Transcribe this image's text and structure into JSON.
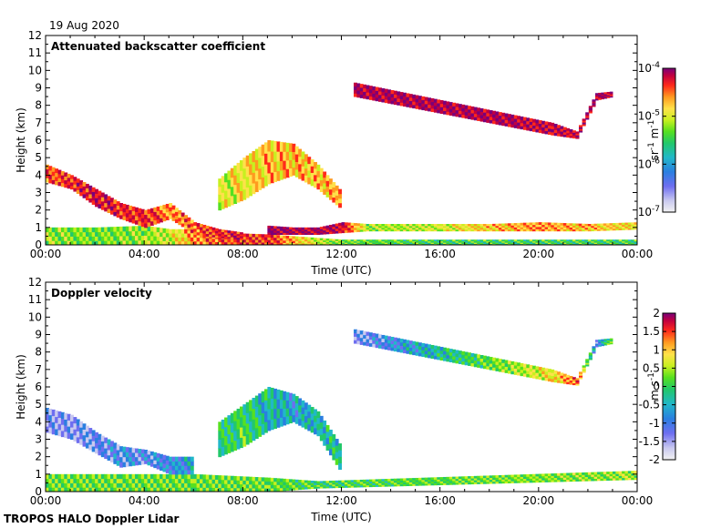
{
  "date": "19 Aug 2020",
  "footer": "TROPOS HALO Doppler Lidar",
  "chart_data": [
    {
      "type": "heatmap",
      "title": "Attenuated backscatter coefficient",
      "xlabel": "Time (UTC)",
      "ylabel": "Height (km)",
      "x_ticks": [
        "00:00",
        "04:00",
        "08:00",
        "12:00",
        "16:00",
        "20:00",
        "00:00"
      ],
      "xlim_hours": [
        0,
        24
      ],
      "ylim": [
        0,
        12
      ],
      "y_ticks": [
        0,
        1,
        2,
        3,
        4,
        5,
        6,
        7,
        8,
        9,
        10,
        11,
        12
      ],
      "colorbar": {
        "label_base": "sr",
        "label_exp1": "-1",
        "label_mid": " m",
        "label_exp2": "-1",
        "scale": "log",
        "range": [
          1e-07,
          0.0001
        ],
        "ticks": [
          {
            "base": "10",
            "exp": "-4",
            "pos": 1.0
          },
          {
            "base": "10",
            "exp": "-5",
            "pos": 0.6667
          },
          {
            "base": "10",
            "exp": "-6",
            "pos": 0.3333
          },
          {
            "base": "10",
            "exp": "-7",
            "pos": 0.0
          }
        ]
      },
      "features": [
        {
          "name": "boundary-layer",
          "points": [
            [
              0,
              0.0,
              1.0,
              0.55
            ],
            [
              2,
              0.0,
              1.0,
              0.5
            ],
            [
              4,
              0.0,
              1.1,
              0.55
            ],
            [
              5,
              0.0,
              0.9,
              0.6
            ],
            [
              6,
              0.0,
              0.9,
              0.75
            ],
            [
              7,
              0.0,
              0.7,
              0.8
            ],
            [
              9,
              0.0,
              0.6,
              0.85
            ],
            [
              10,
              0.0,
              0.5,
              0.7
            ],
            [
              11,
              0.0,
              0.4,
              0.6
            ],
            [
              12,
              0.0,
              0.3,
              0.5
            ],
            [
              16,
              0.0,
              0.3,
              0.45
            ],
            [
              20,
              0.0,
              0.3,
              0.45
            ],
            [
              24,
              0.0,
              0.3,
              0.45
            ]
          ]
        },
        {
          "name": "residual-layer",
          "points": [
            [
              0,
              3.6,
              4.6,
              0.8
            ],
            [
              1,
              3.2,
              4.0,
              0.85
            ],
            [
              2,
              2.2,
              3.2,
              0.9
            ],
            [
              3,
              1.5,
              2.4,
              0.85
            ],
            [
              4,
              1.0,
              2.0,
              0.85
            ],
            [
              5,
              1.5,
              2.4,
              0.75
            ],
            [
              6,
              0.6,
              1.3,
              0.8
            ],
            [
              7,
              0.4,
              0.9,
              0.85
            ],
            [
              8,
              0.3,
              0.7,
              0.9
            ]
          ]
        },
        {
          "name": "cloud-layer",
          "points": [
            [
              9,
              0.6,
              1.1,
              0.98
            ],
            [
              10,
              0.6,
              1.0,
              0.95
            ],
            [
              11,
              0.6,
              1.0,
              0.95
            ],
            [
              12,
              0.7,
              1.3,
              0.9
            ],
            [
              13,
              0.8,
              1.2,
              0.55
            ],
            [
              16,
              0.8,
              1.2,
              0.6
            ],
            [
              18,
              0.8,
              1.2,
              0.7
            ],
            [
              20,
              0.8,
              1.3,
              0.75
            ],
            [
              22,
              0.8,
              1.2,
              0.7
            ],
            [
              24,
              0.9,
              1.3,
              0.65
            ]
          ]
        },
        {
          "name": "lifted-layer",
          "points": [
            [
              7,
              2.0,
              3.8,
              0.6
            ],
            [
              8,
              2.6,
              5.0,
              0.65
            ],
            [
              9,
              3.5,
              6.0,
              0.7
            ],
            [
              10,
              4.0,
              5.8,
              0.72
            ],
            [
              11,
              3.2,
              4.6,
              0.7
            ],
            [
              12,
              2.0,
              3.0,
              0.75
            ]
          ]
        },
        {
          "name": "cirrus-1",
          "points": [
            [
              12.5,
              8.5,
              9.3,
              0.95
            ],
            [
              20.5,
              6.3,
              7.0,
              0.92
            ],
            [
              21.5,
              6.1,
              6.5,
              0.9
            ],
            [
              22.3,
              8.3,
              8.7,
              0.95
            ],
            [
              23,
              8.5,
              8.8,
              0.9
            ]
          ]
        }
      ]
    },
    {
      "type": "heatmap",
      "title": "Doppler velocity",
      "xlabel": "Time (UTC)",
      "ylabel": "Height (km)",
      "x_ticks": [
        "00:00",
        "04:00",
        "08:00",
        "12:00",
        "16:00",
        "20:00",
        "00:00"
      ],
      "xlim_hours": [
        0,
        24
      ],
      "ylim": [
        0,
        12
      ],
      "y_ticks": [
        0,
        1,
        2,
        3,
        4,
        5,
        6,
        7,
        8,
        9,
        10,
        11,
        12
      ],
      "colorbar": {
        "label_base": "m s",
        "label_exp1": "-1",
        "scale": "linear",
        "range": [
          -2,
          2
        ],
        "ticks": [
          {
            "label": "2",
            "value": 2
          },
          {
            "label": "1.5",
            "value": 1.5
          },
          {
            "label": "1",
            "value": 1
          },
          {
            "label": "0.5",
            "value": 0.5
          },
          {
            "label": "0",
            "value": 0
          },
          {
            "label": "-0.5",
            "value": -0.5
          },
          {
            "label": "-1",
            "value": -1
          },
          {
            "label": "-1.5",
            "value": -1.5
          },
          {
            "label": "-2",
            "value": -2
          }
        ]
      },
      "features": [
        {
          "name": "boundary-layer",
          "points": [
            [
              0,
              0.0,
              1.0,
              0.5
            ],
            [
              3,
              0.0,
              1.0,
              0.5
            ],
            [
              6,
              0.0,
              1.0,
              0.5
            ],
            [
              9,
              0.0,
              0.8,
              0.5
            ],
            [
              11,
              0.2,
              0.6,
              0.45
            ],
            [
              24,
              0.7,
              1.2,
              0.55
            ]
          ]
        },
        {
          "name": "residual-layer",
          "points": [
            [
              0,
              3.4,
              4.8,
              0.15
            ],
            [
              1,
              3.0,
              4.4,
              0.15
            ],
            [
              2,
              2.2,
              3.4,
              0.18
            ],
            [
              3,
              1.4,
              2.6,
              0.22
            ],
            [
              4,
              1.6,
              2.4,
              0.2
            ],
            [
              5,
              1.0,
              2.0,
              0.25
            ],
            [
              6,
              1.0,
              2.0,
              0.3
            ]
          ]
        },
        {
          "name": "lifted-layer",
          "points": [
            [
              7,
              2.0,
              4.0,
              0.4
            ],
            [
              8,
              2.6,
              5.0,
              0.45
            ],
            [
              9,
              3.5,
              6.0,
              0.35
            ],
            [
              10,
              4.0,
              5.6,
              0.3
            ],
            [
              11,
              3.2,
              4.6,
              0.35
            ],
            [
              12,
              1.0,
              2.5,
              0.4
            ]
          ]
        },
        {
          "name": "cirrus-1",
          "points": [
            [
              12.5,
              8.5,
              9.3,
              0.15
            ],
            [
              20.5,
              6.3,
              7.0,
              0.65
            ],
            [
              21.5,
              6.1,
              6.5,
              0.8
            ],
            [
              22.3,
              8.3,
              8.7,
              0.2
            ],
            [
              23,
              8.5,
              8.8,
              0.6
            ]
          ]
        }
      ]
    }
  ]
}
